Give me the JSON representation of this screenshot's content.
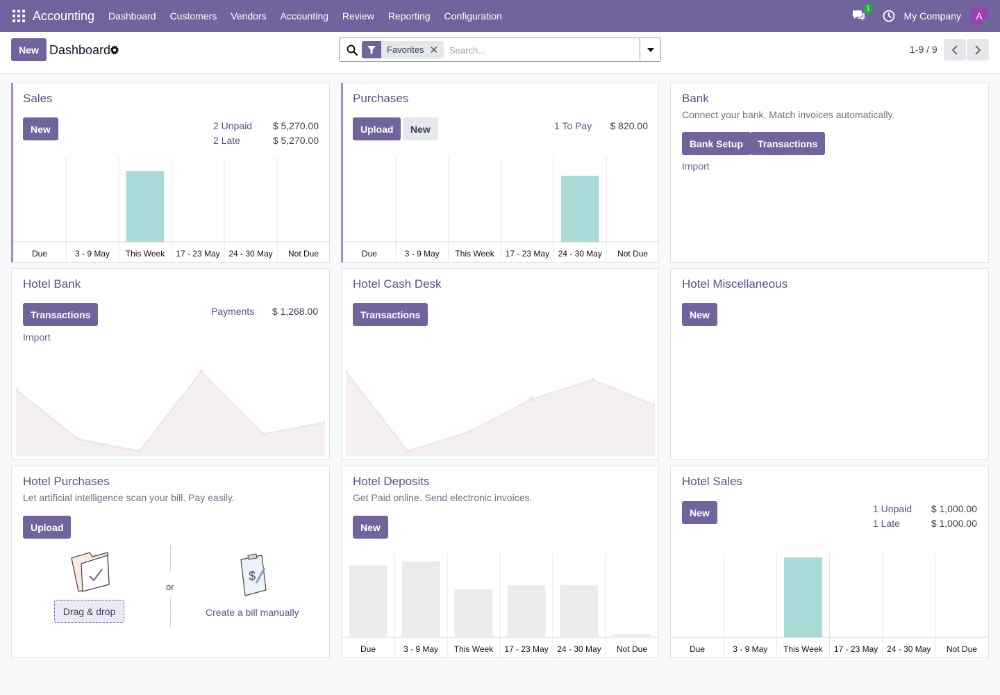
{
  "navbar": {
    "brand": "Accounting",
    "menu": [
      "Dashboard",
      "Customers",
      "Vendors",
      "Accounting",
      "Review",
      "Reporting",
      "Configuration"
    ],
    "chat_badge": "1",
    "company": "My Company",
    "avatar_letter": "A"
  },
  "control": {
    "new_label": "New",
    "title": "Dashboard",
    "facet_label": "Favorites",
    "search_placeholder": "Search...",
    "pager": "1-9 / 9"
  },
  "cards": {
    "sales": {
      "title": "Sales",
      "new_label": "New",
      "stats": [
        {
          "label": "2 Unpaid",
          "value": "$ 5,270.00"
        },
        {
          "label": "2 Late",
          "value": "$ 5,270.00"
        }
      ],
      "chart_data": {
        "type": "bar",
        "categories": [
          "Due",
          "3 - 9 May",
          "This Week",
          "17 - 23 May",
          "24 - 30 May",
          "Not Due"
        ],
        "values": [
          0,
          0,
          5270,
          0,
          0,
          0
        ],
        "colors": [
          "#a8dad8",
          "#a8dad8",
          "#a8dad8",
          "#a8dad8",
          "#a8dad8",
          "#a8dad8"
        ],
        "ylim": [
          0,
          6000
        ],
        "grid": true
      }
    },
    "purchases": {
      "title": "Purchases",
      "upload_label": "Upload",
      "new_label": "New",
      "stats": [
        {
          "label": "1 To Pay",
          "value": "$ 820.00"
        }
      ],
      "chart_data": {
        "type": "bar",
        "categories": [
          "Due",
          "3 - 9 May",
          "This Week",
          "17 - 23 May",
          "24 - 30 May",
          "Not Due"
        ],
        "values": [
          0,
          0,
          0,
          0,
          820,
          0
        ],
        "colors": [
          "#a8dad8",
          "#a8dad8",
          "#a8dad8",
          "#a8dad8",
          "#a8dad8",
          "#a8dad8"
        ],
        "ylim": [
          0,
          1000
        ],
        "grid": true
      }
    },
    "bank": {
      "title": "Bank",
      "subtitle": "Connect your bank. Match invoices automatically.",
      "setup_label": "Bank Setup",
      "transactions_label": "Transactions",
      "import_label": "Import"
    },
    "hotel_bank": {
      "title": "Hotel Bank",
      "transactions_label": "Transactions",
      "import_label": "Import",
      "stats": [
        {
          "label": "Payments",
          "value": "$ 1,268.00"
        }
      ],
      "chart_data": {
        "type": "area",
        "x": [
          0,
          1,
          2,
          3,
          4,
          5
        ],
        "values": [
          55,
          14,
          4,
          70,
          18,
          28
        ],
        "ylim": [
          0,
          80
        ],
        "color": "#f3eff2",
        "line_color": "#ece4ea"
      }
    },
    "hotel_cash": {
      "title": "Hotel Cash Desk",
      "transactions_label": "Transactions",
      "chart_data": {
        "type": "area",
        "x": [
          0,
          1,
          2,
          3,
          4,
          5
        ],
        "values": [
          70,
          4,
          20,
          47,
          63,
          42
        ],
        "ylim": [
          0,
          80
        ],
        "color": "#f3eff2",
        "line_color": "#ece4ea"
      }
    },
    "hotel_misc": {
      "title": "Hotel Miscellaneous",
      "new_label": "New"
    },
    "hotel_purchases": {
      "title": "Hotel Purchases",
      "subtitle": "Let artificial intelligence scan your bill. Pay easily.",
      "upload_label": "Upload",
      "drag_label": "Drag & drop",
      "or_label": "or",
      "manual_label": "Create a bill manually"
    },
    "hotel_deposits": {
      "title": "Hotel Deposits",
      "subtitle": "Get Paid online. Send electronic invoices.",
      "new_label": "New",
      "chart_data": {
        "type": "bar",
        "categories": [
          "Due",
          "3 - 9 May",
          "This Week",
          "17 - 23 May",
          "24 - 30 May",
          "Not Due"
        ],
        "values": [
          90,
          95,
          60,
          65,
          65,
          4
        ],
        "colors": [
          "#ebebeb",
          "#ebebeb",
          "#ebebeb",
          "#ebebeb",
          "#ebebeb",
          "#ebebeb"
        ],
        "ylim": [
          0,
          100
        ],
        "grid": true
      }
    },
    "hotel_sales": {
      "title": "Hotel Sales",
      "new_label": "New",
      "stats": [
        {
          "label": "1 Unpaid",
          "value": "$ 1,000.00"
        },
        {
          "label": "1 Late",
          "value": "$ 1,000.00"
        }
      ],
      "chart_data": {
        "type": "bar",
        "categories": [
          "Due",
          "3 - 9 May",
          "This Week",
          "17 - 23 May",
          "24 - 30 May",
          "Not Due"
        ],
        "values": [
          0,
          0,
          1000,
          0,
          0,
          0
        ],
        "colors": [
          "#a8dad8",
          "#a8dad8",
          "#a8dad8",
          "#a8dad8",
          "#a8dad8",
          "#a8dad8"
        ],
        "ylim": [
          0,
          1000
        ],
        "grid": true
      }
    }
  }
}
